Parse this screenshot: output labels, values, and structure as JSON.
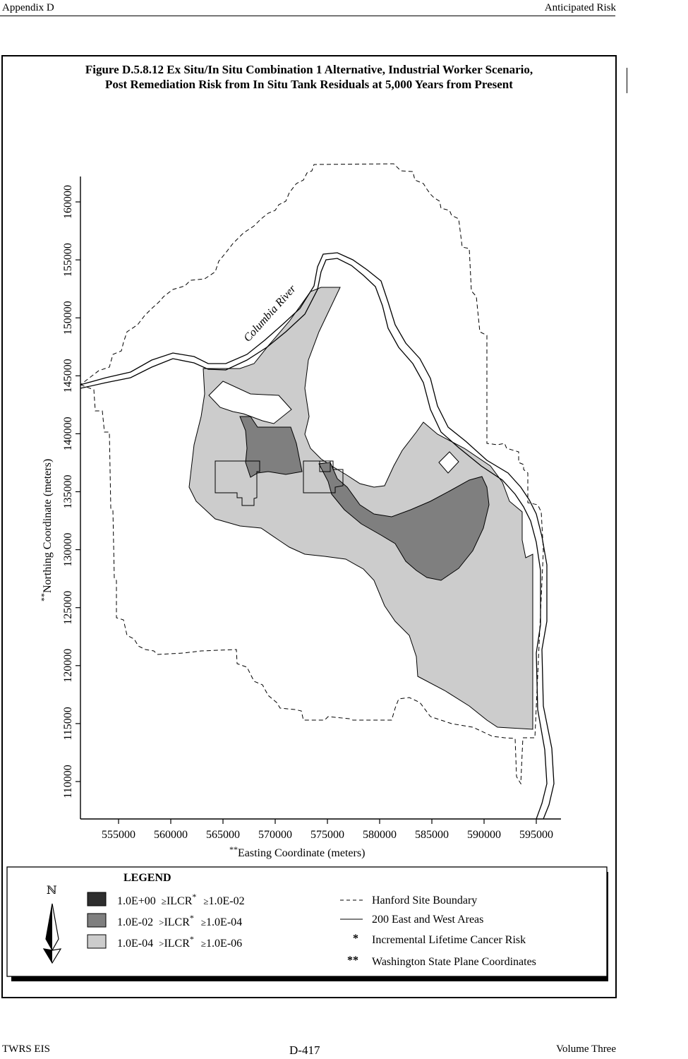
{
  "header": {
    "left": "Appendix D",
    "right": "Anticipated Risk"
  },
  "figure": {
    "title_line1": "Figure D.5.8.12  Ex Situ/In Situ Combination 1 Alternative, Industrial Worker Scenario,",
    "title_line2": "Post Remediation Risk from In Situ Tank Residuals at 5,000 Years from Present"
  },
  "map": {
    "river_label": "Columbia River",
    "x_axis_label_prefix": "**",
    "x_axis_label": "Easting Coordinate (meters)",
    "y_axis_label_prefix": "**",
    "y_axis_label": "Northing Coordinate (meters)",
    "x_ticks": [
      "555000",
      "560000",
      "565000",
      "570000",
      "575000",
      "580000",
      "585000",
      "590000",
      "595000"
    ],
    "y_ticks": [
      "110000",
      "115000",
      "120000",
      "125000",
      "130000",
      "135000",
      "140000",
      "145000",
      "150000",
      "155000",
      "160000"
    ],
    "colors": {
      "high": "#2e2e2e",
      "medium": "#7f7f7f",
      "low": "#cccccc"
    }
  },
  "legend": {
    "title": "LEGEND",
    "north_symbol": "ℕ",
    "north_arrow_icon": "north-arrow-icon",
    "ranges": [
      {
        "upper": "1.0E+00",
        "op1": "≥",
        "label": "ILCR",
        "star": "*",
        "op2": "≥",
        "lower": "1.0E-02"
      },
      {
        "upper": "1.0E-02",
        "op1": ">",
        "label": "ILCR",
        "star": "*",
        "op2": "≥",
        "lower": "1.0E-04"
      },
      {
        "upper": "1.0E-04",
        "op1": ">",
        "label": "ILCR",
        "star": "*",
        "op2": "≥",
        "lower": "1.0E-06"
      }
    ],
    "line_items": [
      {
        "symbol": "- - -",
        "label": "Hanford Site Boundary"
      },
      {
        "symbol": "——",
        "label": "200 East and West Areas"
      },
      {
        "symbol": "*",
        "label": "Incremental Lifetime Cancer Risk"
      },
      {
        "symbol": "**",
        "label": "Washington State Plane Coordinates"
      }
    ]
  },
  "footer": {
    "left": "TWRS EIS",
    "center": "D-417",
    "right": "Volume Three"
  }
}
